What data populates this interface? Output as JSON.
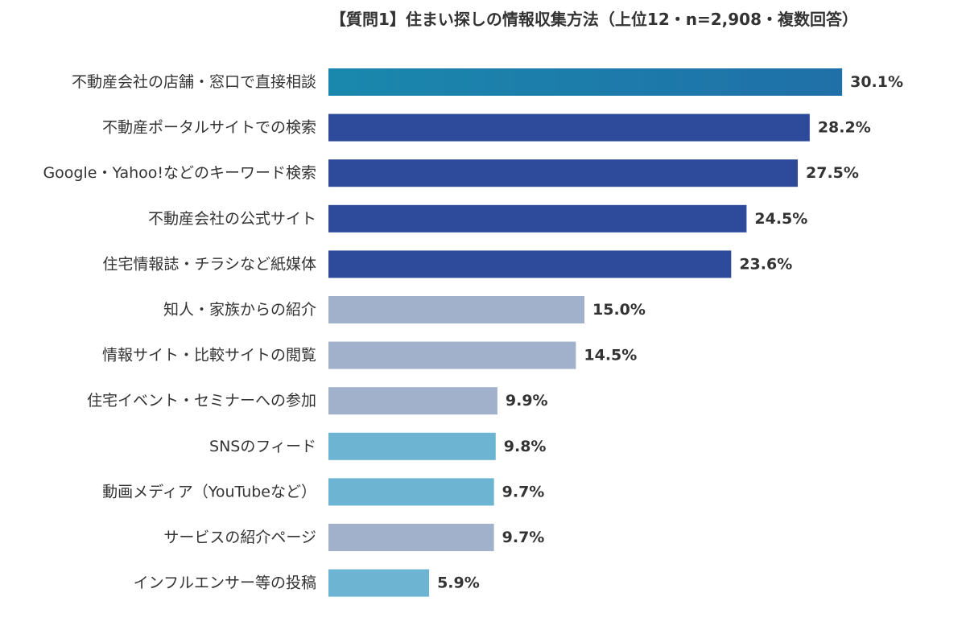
{
  "chart_data": {
    "type": "bar",
    "orientation": "horizontal",
    "title": "【質問1】住まい探しの情報収集方法（上位12・n=2,908・複数回答）",
    "xlim": [
      0,
      32
    ],
    "grid": false,
    "legend": "none",
    "value_suffix": "%",
    "colors": {
      "teal_gradient_start": "#1a88ad",
      "teal_gradient_end": "#1f70a8",
      "navy": "#2d4a9b",
      "grey_blue": "#a1b1cb",
      "light_blue": "#6cb4d1"
    },
    "categories": [
      "不動産会社の店舗・窓口で直接相談",
      "不動産ポータルサイトでの検索",
      "Google・Yahoo!などのキーワード検索",
      "不動産会社の公式サイト",
      "住宅情報誌・チラシなど紙媒体",
      "知人・家族からの紹介",
      "情報サイト・比較サイトの閲覧",
      "住宅イベント・セミナーへの参加",
      "SNSのフィード",
      "動画メディア（YouTubeなど）",
      "サービスの紹介ページ",
      "インフルエンサー等の投稿"
    ],
    "values": [
      30.1,
      28.2,
      27.5,
      24.5,
      23.6,
      15.0,
      14.5,
      9.9,
      9.8,
      9.7,
      9.7,
      5.9
    ],
    "value_labels": [
      "30.1%",
      "28.2%",
      "27.5%",
      "24.5%",
      "23.6%",
      "15.0%",
      "14.5%",
      "9.9%",
      "9.8%",
      "9.7%",
      "9.7%",
      "5.9%"
    ],
    "bar_color_keys": [
      "teal_gradient",
      "navy",
      "navy",
      "navy",
      "navy",
      "grey_blue",
      "grey_blue",
      "grey_blue",
      "light_blue",
      "light_blue",
      "grey_blue",
      "light_blue"
    ]
  }
}
